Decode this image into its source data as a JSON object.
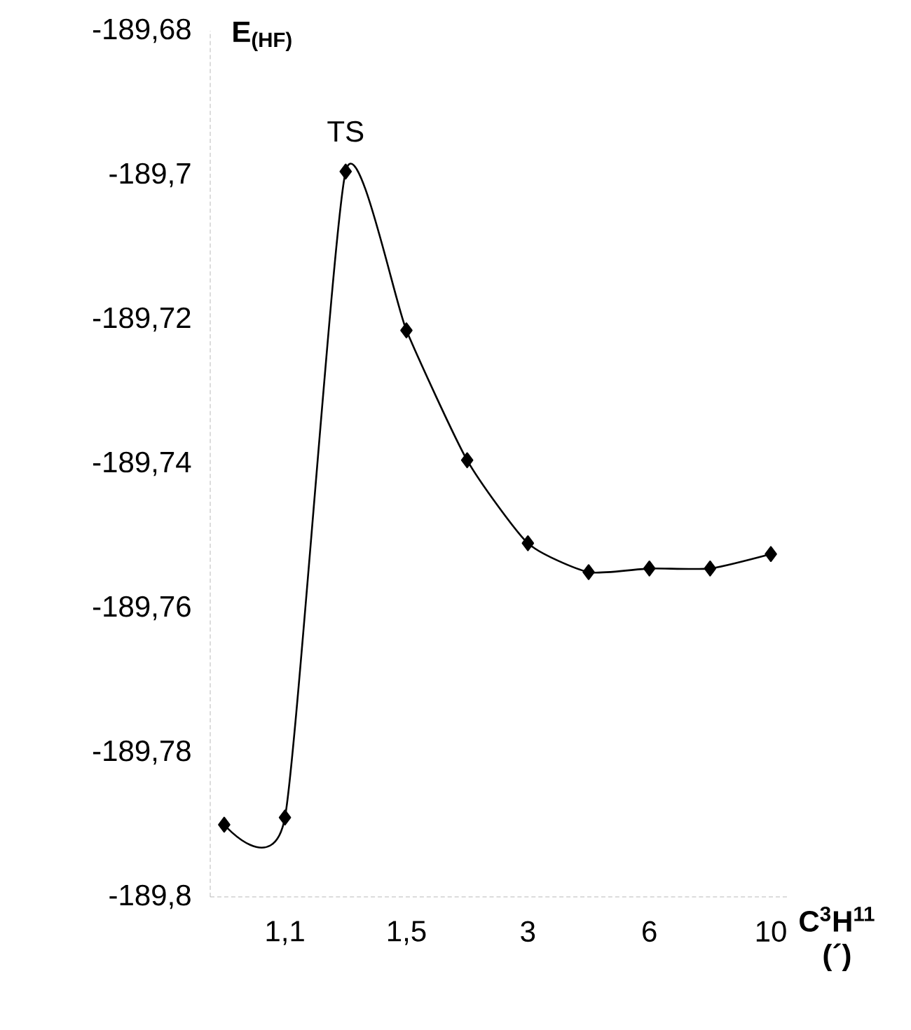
{
  "chart_data": {
    "type": "line",
    "ylabel": "E$_{(HF)}$",
    "xlabel": "C$^{3}$H$^{11}$ (´)",
    "annotations": [
      "TS"
    ],
    "categories": [
      null,
      "1,1",
      null,
      "1,5",
      null,
      "3",
      null,
      "6",
      null,
      "10"
    ],
    "series": [
      {
        "color": "#000000",
        "values": [
          -189.79,
          -189.789,
          -189.6995,
          -189.7215,
          -189.7395,
          -189.751,
          -189.755,
          -189.7545,
          -189.7545,
          -189.7525
        ]
      }
    ],
    "ylim": [
      -189.8,
      -189.68
    ],
    "yticks": [
      {
        "value": -189.8,
        "label": "-189,8"
      },
      {
        "value": -189.78,
        "label": "-189,78"
      },
      {
        "value": -189.76,
        "label": "-189,76"
      },
      {
        "value": -189.74,
        "label": "-189,74"
      },
      {
        "value": -189.72,
        "label": "-189,72"
      },
      {
        "value": -189.7,
        "label": "-189,7"
      },
      {
        "value": -189.68,
        "label": "-189,68"
      }
    ],
    "grid": false,
    "marker": "diamond",
    "line_style": "solid"
  }
}
